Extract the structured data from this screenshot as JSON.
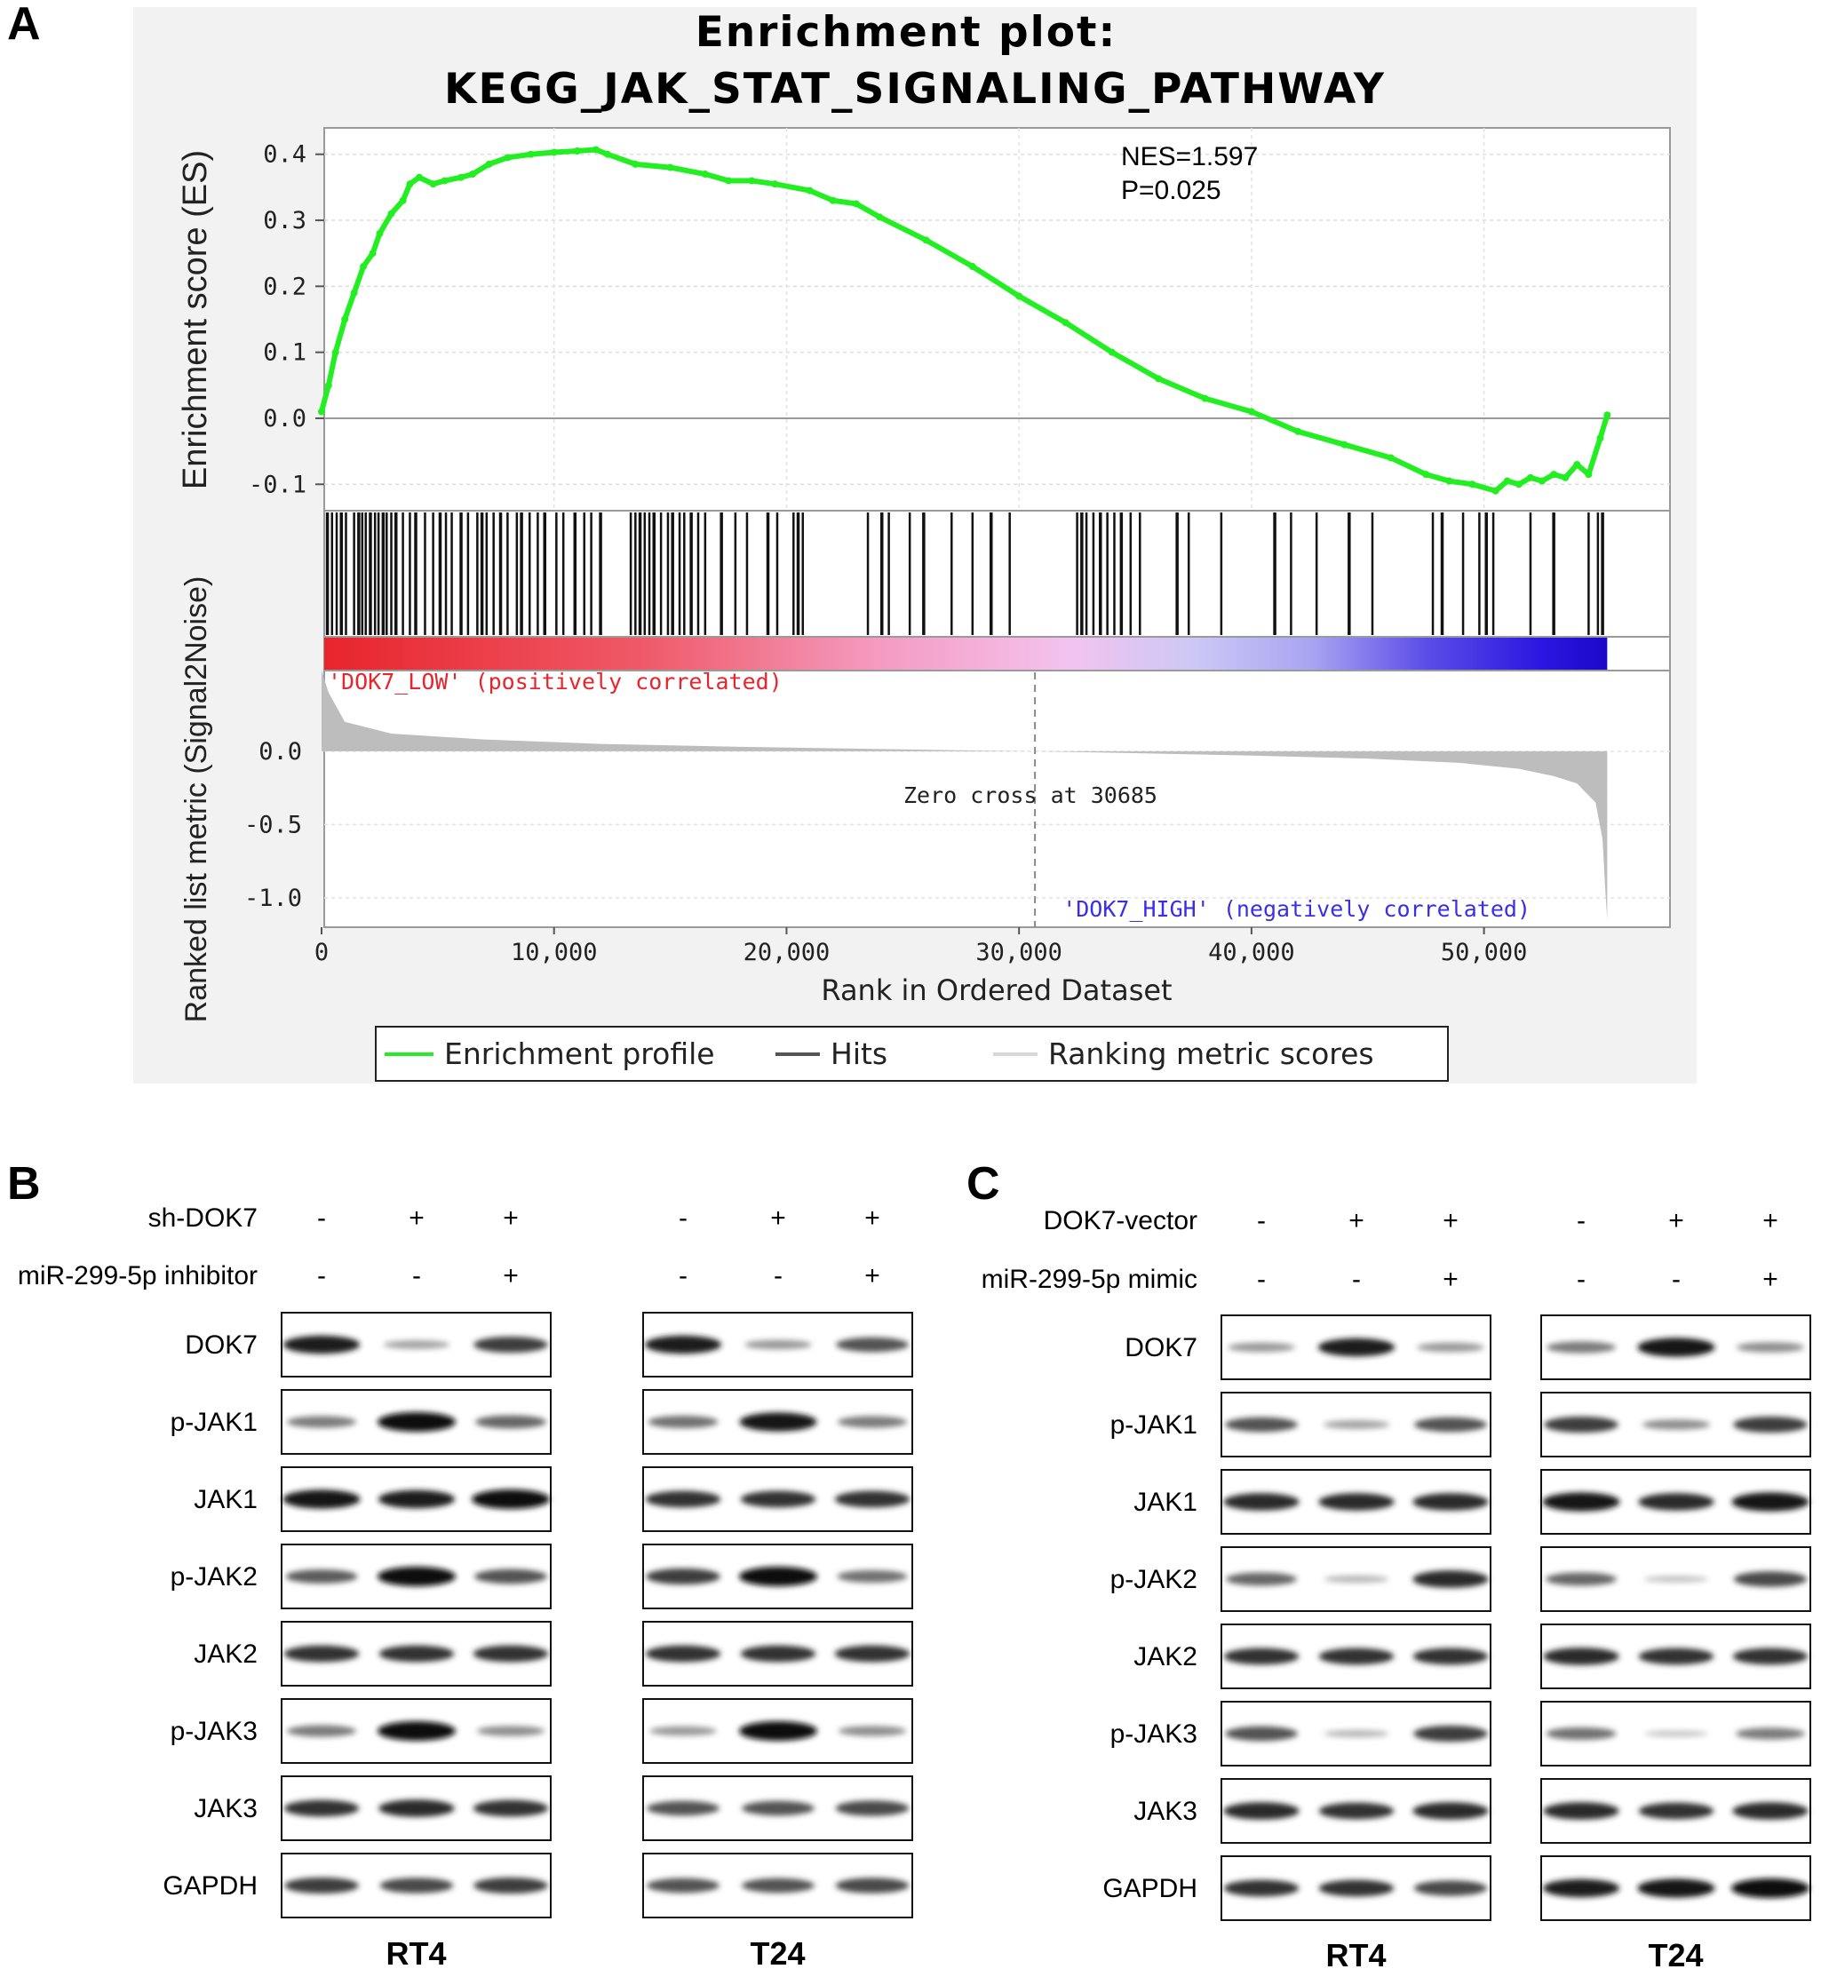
{
  "panels": {
    "A": {
      "letter": "A"
    },
    "B": {
      "letter": "B"
    },
    "C": {
      "letter": "C"
    }
  },
  "gsea": {
    "title_line1": "Enrichment plot:",
    "title_line2": "KEGG_JAK_STAT_SIGNALING_PATHWAY",
    "nes": "NES=1.597",
    "p": "P=0.025",
    "pos_label": "'DOK7_LOW' (positively correlated)",
    "neg_label": "'DOK7_HIGH' (negatively correlated)",
    "zero_cross": "Zero cross at 30685",
    "legend": [
      "Enrichment profile",
      "Hits",
      "Ranking metric scores"
    ],
    "colors": {
      "es_line": "#22ee22",
      "metric": "#bdbdbd",
      "pos": "#e8242c",
      "neg": "#2a16e0"
    }
  },
  "chart_data": {
    "type": "line",
    "title": "Enrichment plot: KEGG_JAK_STAT_SIGNALING_PATHWAY",
    "xlabel": "Rank in Ordered Dataset",
    "ylabel": "Enrichment score (ES)",
    "ylabel2": "Ranked list metric (Signal2Noise)",
    "xlim": [
      0,
      58000
    ],
    "ylim": [
      -0.14,
      0.44
    ],
    "ylim2": [
      -1.2,
      0.55
    ],
    "x_ticks": [
      0,
      10000,
      20000,
      30000,
      40000,
      50000
    ],
    "x_tick_labels": [
      "0",
      "10,000",
      "20,000",
      "30,000",
      "40,000",
      "50,000"
    ],
    "y_ticks": [
      0.4,
      0.3,
      0.2,
      0.1,
      0.0,
      -0.1
    ],
    "y_tick_labels": [
      "0.4",
      "0.3",
      "0.2",
      "0.1",
      "0.0",
      "-0.1"
    ],
    "y2_ticks": [
      0.0,
      -0.5,
      -1.0
    ],
    "y2_tick_labels": [
      "0.0",
      "-0.5",
      "-1.0"
    ],
    "zero_cross": 30685,
    "legend_position": "bottom",
    "series": [
      {
        "name": "Enrichment profile",
        "x": [
          0,
          300,
          600,
          1000,
          1400,
          1800,
          2200,
          2500,
          3000,
          3500,
          3800,
          4200,
          4800,
          5300,
          6000,
          6500,
          7200,
          8000,
          9000,
          10000,
          11000,
          11800,
          12300,
          13500,
          15000,
          16500,
          17500,
          18500,
          19500,
          21000,
          22000,
          23000,
          24000,
          26000,
          28000,
          30000,
          32000,
          34000,
          36000,
          38000,
          40000,
          42000,
          44000,
          46000,
          47500,
          48500,
          49500,
          50500,
          51000,
          51500,
          52000,
          52500,
          53000,
          53500,
          54000,
          54500,
          55000,
          55300
        ],
        "y": [
          0.01,
          0.05,
          0.1,
          0.15,
          0.19,
          0.23,
          0.25,
          0.28,
          0.31,
          0.33,
          0.355,
          0.365,
          0.355,
          0.36,
          0.365,
          0.37,
          0.385,
          0.395,
          0.4,
          0.403,
          0.405,
          0.407,
          0.4,
          0.385,
          0.38,
          0.37,
          0.36,
          0.36,
          0.355,
          0.345,
          0.33,
          0.325,
          0.305,
          0.27,
          0.23,
          0.185,
          0.145,
          0.1,
          0.06,
          0.03,
          0.01,
          -0.02,
          -0.04,
          -0.06,
          -0.085,
          -0.095,
          -0.1,
          -0.11,
          -0.095,
          -0.1,
          -0.09,
          -0.095,
          -0.085,
          -0.09,
          -0.07,
          -0.085,
          -0.03,
          0.005
        ]
      },
      {
        "name": "Ranking metric scores",
        "x": [
          0,
          300,
          1000,
          3000,
          7000,
          12000,
          18000,
          24000,
          28000,
          30685,
          34000,
          40000,
          45000,
          49000,
          51500,
          53000,
          54000,
          54800,
          55100,
          55200,
          55300
        ],
        "y": [
          0.55,
          0.4,
          0.2,
          0.12,
          0.08,
          0.05,
          0.03,
          0.015,
          0.005,
          0.0,
          -0.01,
          -0.03,
          -0.05,
          -0.08,
          -0.12,
          -0.17,
          -0.22,
          -0.35,
          -0.6,
          -0.9,
          -1.15
        ]
      }
    ],
    "hits": [
      250,
      450,
      650,
      850,
      1050,
      1400,
      1600,
      1750,
      1900,
      2100,
      2300,
      2450,
      2650,
      2800,
      3000,
      3200,
      3500,
      3800,
      4050,
      4450,
      4800,
      5100,
      5350,
      5600,
      6000,
      6300,
      6700,
      6900,
      7100,
      7400,
      7700,
      8000,
      8400,
      8600,
      8950,
      9300,
      9600,
      10100,
      10400,
      10900,
      11300,
      11600,
      12000,
      13300,
      13500,
      13700,
      13900,
      14100,
      14300,
      14600,
      14900,
      15100,
      15400,
      15600,
      15900,
      16200,
      16500,
      17200,
      17800,
      18300,
      19200,
      19600,
      20300,
      20500,
      20700,
      23500,
      24100,
      24400,
      25300,
      25900,
      27100,
      28000,
      28800,
      29600,
      32500,
      32700,
      32900,
      33200,
      33500,
      33800,
      34100,
      34400,
      34800,
      35200,
      36800,
      37300,
      38700,
      41000,
      41700,
      42800,
      44200,
      45200,
      47800,
      48200,
      49100,
      49800,
      50100,
      50400,
      52000,
      53000,
      54500,
      54900,
      55100
    ]
  },
  "western_b": {
    "row1_label": "sh-DOK7",
    "row2_label": "miR-299-5p inhibitor",
    "row1_signs": [
      "-",
      "+",
      "+"
    ],
    "row2_signs": [
      "-",
      "-",
      "+"
    ],
    "cells": [
      "RT4",
      "T24"
    ],
    "proteins": [
      "DOK7",
      "p-JAK1",
      "JAK1",
      "p-JAK2",
      "JAK2",
      "p-JAK3",
      "JAK3",
      "GAPDH"
    ]
  },
  "western_c": {
    "row1_label": "DOK7-vector",
    "row2_label": "miR-299-5p mimic",
    "row1_signs": [
      "-",
      "+",
      "+"
    ],
    "row2_signs": [
      "-",
      "-",
      "+"
    ],
    "cells": [
      "RT4",
      "T24"
    ],
    "proteins": [
      "DOK7",
      "p-JAK1",
      "JAK1",
      "p-JAK2",
      "JAK2",
      "p-JAK3",
      "JAK3",
      "GAPDH"
    ]
  },
  "band_intensity": {
    "B_RT4": [
      [
        0.9,
        0.25,
        0.75
      ],
      [
        0.45,
        1.0,
        0.55
      ],
      [
        0.95,
        0.9,
        1.0
      ],
      [
        0.6,
        1.0,
        0.65
      ],
      [
        0.8,
        0.8,
        0.8
      ],
      [
        0.45,
        1.0,
        0.35
      ],
      [
        0.8,
        0.85,
        0.8
      ],
      [
        0.75,
        0.7,
        0.75
      ]
    ],
    "B_T24": [
      [
        0.9,
        0.3,
        0.65
      ],
      [
        0.5,
        0.95,
        0.45
      ],
      [
        0.8,
        0.8,
        0.8
      ],
      [
        0.75,
        1.0,
        0.5
      ],
      [
        0.8,
        0.8,
        0.8
      ],
      [
        0.3,
        1.0,
        0.35
      ],
      [
        0.65,
        0.65,
        0.7
      ],
      [
        0.65,
        0.65,
        0.7
      ]
    ],
    "C_RT4": [
      [
        0.3,
        0.9,
        0.3
      ],
      [
        0.65,
        0.25,
        0.65
      ],
      [
        0.85,
        0.85,
        0.85
      ],
      [
        0.55,
        0.15,
        0.85
      ],
      [
        0.8,
        0.8,
        0.8
      ],
      [
        0.65,
        0.15,
        0.75
      ],
      [
        0.85,
        0.8,
        0.85
      ],
      [
        0.8,
        0.8,
        0.7
      ]
    ],
    "C_T24": [
      [
        0.45,
        0.95,
        0.35
      ],
      [
        0.75,
        0.35,
        0.75
      ],
      [
        0.95,
        0.85,
        0.95
      ],
      [
        0.55,
        0.1,
        0.7
      ],
      [
        0.85,
        0.8,
        0.8
      ],
      [
        0.5,
        0.08,
        0.45
      ],
      [
        0.85,
        0.8,
        0.85
      ],
      [
        0.9,
        0.95,
        1.0
      ]
    ]
  }
}
